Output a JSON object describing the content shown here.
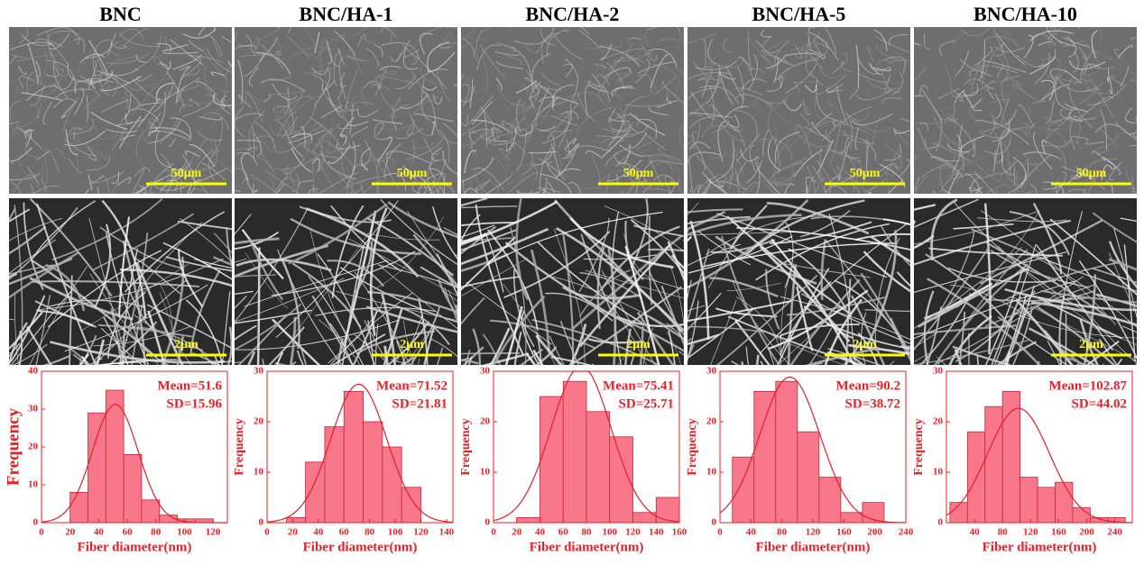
{
  "chart_data": [
    {
      "type": "histogram",
      "title": "BNC",
      "scale_labels": [
        "50μm",
        "2μm"
      ],
      "bins": [
        20,
        32.5,
        45,
        57.5,
        70,
        82.5,
        95,
        107.5,
        120
      ],
      "values": [
        8,
        29,
        35,
        18,
        6,
        2,
        1,
        1
      ],
      "color": "#f9778a",
      "curve_color": "#e0202a",
      "xlim": [
        0,
        130
      ],
      "xticks": [
        0,
        20,
        40,
        60,
        80,
        100,
        120
      ],
      "ylim": [
        0,
        40
      ],
      "yticks": [
        0,
        10,
        20,
        30,
        40
      ],
      "xlabel": "Fiber diameter(nm)",
      "ylabel": "Frequency",
      "mean": {
        "value": 51.6,
        "label": "Mean=51.6"
      },
      "sd": {
        "value": 15.96,
        "label": "SD=15.96"
      }
    },
    {
      "type": "histogram",
      "title": "BNC/HA-1",
      "scale_labels": [
        "50μm",
        "2μm"
      ],
      "bins": [
        15,
        30,
        45,
        60,
        75,
        90,
        105,
        120
      ],
      "values": [
        1,
        12,
        19,
        26,
        20,
        15,
        7
      ],
      "color": "#f9778a",
      "curve_color": "#e0202a",
      "xlim": [
        0,
        145
      ],
      "xticks": [
        0,
        20,
        40,
        60,
        80,
        100,
        120,
        140
      ],
      "ylim": [
        0,
        30
      ],
      "yticks": [
        0,
        10,
        20,
        30
      ],
      "xlabel": "Fiber diameter(nm)",
      "ylabel": "Frequency",
      "mean": {
        "value": 71.52,
        "label": "Mean=71.52"
      },
      "sd": {
        "value": 21.81,
        "label": "SD=21.81"
      }
    },
    {
      "type": "histogram",
      "title": "BNC/HA-2",
      "scale_labels": [
        "50μm",
        "2μm"
      ],
      "bins": [
        20,
        40,
        60,
        80,
        100,
        120,
        140,
        160
      ],
      "values": [
        1,
        25,
        28,
        22,
        17,
        2,
        5
      ],
      "color": "#f9778a",
      "curve_color": "#e0202a",
      "xlim": [
        0,
        160
      ],
      "xticks": [
        0,
        20,
        40,
        60,
        80,
        100,
        120,
        140,
        160
      ],
      "ylim": [
        0,
        30
      ],
      "yticks": [
        0,
        10,
        20,
        30
      ],
      "xlabel": "Fiber diameter(nm)",
      "ylabel": "Frequency",
      "mean": {
        "value": 75.41,
        "label": "Mean=75.41"
      },
      "sd": {
        "value": 25.71,
        "label": "SD=25.71"
      }
    },
    {
      "type": "histogram",
      "title": "BNC/HA-5",
      "scale_labels": [
        "50μm",
        "2μm"
      ],
      "bins": [
        16,
        44,
        72,
        100,
        128,
        156,
        184,
        212
      ],
      "values": [
        13,
        26,
        28,
        18,
        9,
        2,
        4
      ],
      "color": "#f9778a",
      "curve_color": "#e0202a",
      "xlim": [
        0,
        240
      ],
      "xticks": [
        0,
        40,
        80,
        120,
        160,
        200,
        240
      ],
      "ylim": [
        0,
        30
      ],
      "yticks": [
        0,
        10,
        20,
        30
      ],
      "xlabel": "Fiber diameter(nm)",
      "ylabel": "Frequency",
      "mean": {
        "value": 90.2,
        "label": "Mean=90.2"
      },
      "sd": {
        "value": 38.72,
        "label": "SD=38.72"
      }
    },
    {
      "type": "histogram",
      "title": "BNC/HA-10",
      "scale_labels": [
        "50μm",
        "2μm"
      ],
      "bins": [
        5,
        30,
        55,
        80,
        105,
        130,
        155,
        180,
        205,
        230,
        255
      ],
      "values": [
        4,
        18,
        23,
        26,
        9,
        7,
        8,
        3,
        1,
        1
      ],
      "color": "#f9778a",
      "curve_color": "#e0202a",
      "xlim": [
        0,
        265
      ],
      "xticks": [
        40,
        80,
        120,
        160,
        200,
        240
      ],
      "ylim": [
        0,
        30
      ],
      "yticks": [
        0,
        10,
        20,
        30
      ],
      "xlabel": "Fiber diameter(nm)",
      "ylabel": "Frequency",
      "mean": {
        "value": 102.87,
        "label": "Mean=102.87"
      },
      "sd": {
        "value": 44.02,
        "label": "SD=44.02"
      }
    }
  ]
}
